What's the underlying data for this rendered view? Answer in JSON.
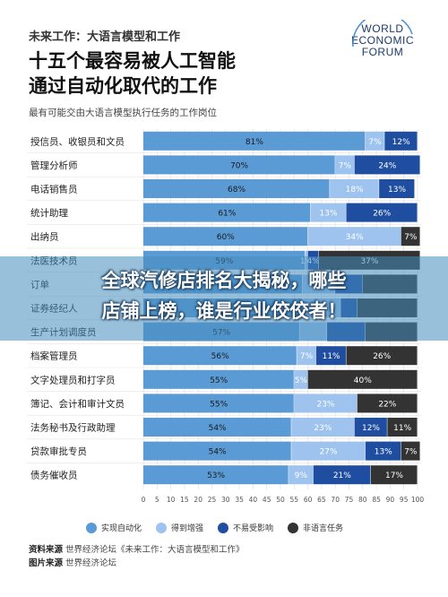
{
  "header": {
    "kicker": "未来工作：大语言模型和工作",
    "title_line1": "十五个最容易被人工智能",
    "title_line2": "通过自动化取代的工作",
    "subtitle": "最有可能交由大语言模型执行任务的工作岗位"
  },
  "logo": {
    "line1": "WORLD",
    "line2": "ECONOMIC",
    "line3": "FORUM"
  },
  "banner": {
    "line1": "全球汽修店排名大揭秘，哪些",
    "line2": "店铺上榜，谁是行业佼佼者！"
  },
  "legend": [
    {
      "label": "实现自动化",
      "color": "#5b9bd5"
    },
    {
      "label": "得到增强",
      "color": "#9dc3ee"
    },
    {
      "label": "不易受影响",
      "color": "#1f4ea1"
    },
    {
      "label": "非语言任务",
      "color": "#333333"
    }
  ],
  "source": {
    "source_label": "资料来源",
    "source_text": "世界经济论坛《未来工作：大语言模型和工作》",
    "image_label": "图片来源",
    "image_text": "世界经济论坛"
  },
  "colors": {
    "automation": "#5b9bd5",
    "augmentation": "#9dc3ee",
    "lower": "#1f4ea1",
    "nonlanguage": "#333333"
  },
  "chart_data": {
    "type": "bar",
    "orientation": "horizontal",
    "stacked": true,
    "title": "十五个最容易被人工智能通过自动化取代的工作",
    "subtitle": "最有可能交由大语言模型执行任务的工作岗位",
    "categories": [
      "授信员、收银员和文员",
      "管理分析师",
      "电话销售员",
      "统计助理",
      "出纳员",
      "法医技术员",
      "订单",
      "证券经纪人",
      "生产计划调度员",
      "档案管理员",
      "文字处理员和打字员",
      "簿记、会计和审计文员",
      "法务秘书及行政助理",
      "贷款审批专员",
      "债务催收员"
    ],
    "series": [
      {
        "name": "实现自动化",
        "values": [
          81,
          70,
          68,
          61,
          60,
          59,
          58,
          58,
          57,
          56,
          55,
          55,
          54,
          54,
          53
        ]
      },
      {
        "name": "得到增强",
        "values": [
          7,
          7,
          18,
          13,
          34,
          1,
          12,
          14,
          10,
          7,
          5,
          23,
          23,
          27,
          9
        ]
      },
      {
        "name": "不易受影响",
        "values": [
          12,
          24,
          13,
          26,
          0,
          4,
          10,
          6,
          14,
          11,
          0,
          0,
          12,
          13,
          21
        ]
      },
      {
        "name": "非语言任务",
        "values": [
          0,
          0,
          0,
          0,
          7,
          37,
          20,
          22,
          19,
          26,
          40,
          22,
          11,
          7,
          17
        ]
      }
    ],
    "data_labels": [
      [
        "81%",
        "7%",
        "12%",
        ""
      ],
      [
        "70%",
        "7%",
        "24%",
        ""
      ],
      [
        "68%",
        "18%",
        "13%",
        ""
      ],
      [
        "61%",
        "13%",
        "26%",
        ""
      ],
      [
        "60%",
        "34%",
        "",
        "7%"
      ],
      [
        "59%",
        "1%",
        "4%",
        "37%"
      ],
      [
        "",
        "",
        "",
        ""
      ],
      [
        "",
        "",
        "",
        ""
      ],
      [
        "57%",
        "",
        "",
        ""
      ],
      [
        "56%",
        "7%",
        "11%",
        "26%"
      ],
      [
        "55%",
        "5%",
        "",
        "40%"
      ],
      [
        "55%",
        "23%",
        "",
        "22%"
      ],
      [
        "54%",
        "23%",
        "12%",
        "11%"
      ],
      [
        "54%",
        "27%",
        "13%",
        "7%"
      ],
      [
        "53%",
        "9%",
        "21%",
        "17%"
      ]
    ],
    "x_ticks": [
      "0",
      "5",
      "10",
      "15",
      "20",
      "25",
      "30",
      "35",
      "40",
      "45",
      "50",
      "55",
      "60",
      "65",
      "70",
      "75",
      "80",
      "85",
      "90",
      "95",
      "100"
    ],
    "xlim": [
      0,
      100
    ],
    "legend_position": "bottom"
  }
}
